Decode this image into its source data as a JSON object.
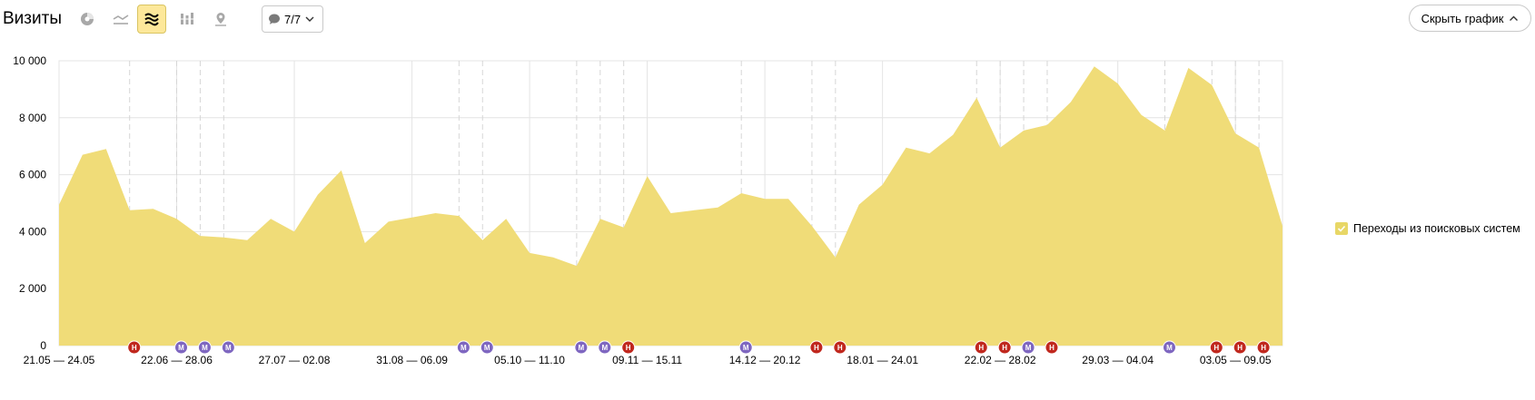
{
  "header": {
    "title": "Визиты",
    "filter_label": "7/7",
    "hide_chart_label": "Скрыть график"
  },
  "toolbar": {
    "buttons": [
      {
        "icon": "pie-chart-icon",
        "active": false
      },
      {
        "icon": "line-chart-icon",
        "active": false
      },
      {
        "icon": "area-chart-icon",
        "active": true
      },
      {
        "icon": "bar-chart-icon",
        "active": false
      },
      {
        "icon": "map-pin-icon",
        "active": false
      }
    ],
    "filter_icon": "comment-icon"
  },
  "legend": {
    "items": [
      {
        "label": "Переходы из поисковых систем",
        "color": "#f0dc78",
        "checked": true
      }
    ]
  },
  "chart_data": {
    "type": "area",
    "title": "",
    "xlabel": "",
    "ylabel": "",
    "ylim": [
      0,
      10000
    ],
    "yticks": [
      0,
      2000,
      4000,
      6000,
      8000,
      10000
    ],
    "ytick_labels": [
      "0",
      "2 000",
      "4 000",
      "6 000",
      "8 000",
      "10 000"
    ],
    "grid": true,
    "fill_color": "#f0dc78",
    "x_labels": [
      {
        "index": 0,
        "label": "21.05 — 24.05"
      },
      {
        "index": 5,
        "label": "22.06 — 28.06"
      },
      {
        "index": 10,
        "label": "27.07 — 02.08"
      },
      {
        "index": 15,
        "label": "31.08 — 06.09"
      },
      {
        "index": 20,
        "label": "05.10 — 11.10"
      },
      {
        "index": 25,
        "label": "09.11 — 15.11"
      },
      {
        "index": 30,
        "label": "14.12 — 20.12"
      },
      {
        "index": 35,
        "label": "18.01 — 24.01"
      },
      {
        "index": 40,
        "label": "22.02 — 28.02"
      },
      {
        "index": 45,
        "label": "29.03 — 04.04"
      },
      {
        "index": 50,
        "label": "03.05 — 09.05"
      }
    ],
    "series": [
      {
        "values": [
          4950,
          6700,
          6900,
          4750,
          4800,
          4450,
          3850,
          3800,
          3700,
          4450,
          4000,
          5300,
          6150,
          3600,
          4350,
          4500,
          4650,
          4550,
          3700,
          4450,
          3250,
          3100,
          2800,
          4450,
          4150,
          5950,
          4650,
          4750,
          4850,
          5350,
          5150,
          5150,
          4200,
          3100,
          4950,
          5650,
          6950,
          6750,
          7400,
          8700,
          6950,
          7550,
          7750,
          8550,
          9800,
          9200,
          8100,
          7550,
          9750,
          9150,
          7450,
          6950,
          4200
        ]
      }
    ],
    "annotation_markers": [
      {
        "index": 3,
        "type": "Н"
      },
      {
        "index": 5,
        "type": "М"
      },
      {
        "index": 6,
        "type": "М"
      },
      {
        "index": 7,
        "type": "М"
      },
      {
        "index": 17,
        "type": "М"
      },
      {
        "index": 18,
        "type": "М"
      },
      {
        "index": 22,
        "type": "М"
      },
      {
        "index": 23,
        "type": "М"
      },
      {
        "index": 24,
        "type": "Н"
      },
      {
        "index": 29,
        "type": "М"
      },
      {
        "index": 32,
        "type": "Н"
      },
      {
        "index": 33,
        "type": "Н"
      },
      {
        "index": 39,
        "type": "Н"
      },
      {
        "index": 40,
        "type": "Н"
      },
      {
        "index": 41,
        "type": "М"
      },
      {
        "index": 42,
        "type": "Н"
      },
      {
        "index": 47,
        "type": "М"
      },
      {
        "index": 49,
        "type": "Н"
      },
      {
        "index": 50,
        "type": "Н"
      },
      {
        "index": 51,
        "type": "Н"
      }
    ],
    "marker_colors": {
      "Н": "#c0271d",
      "М": "#7e66c0"
    }
  }
}
